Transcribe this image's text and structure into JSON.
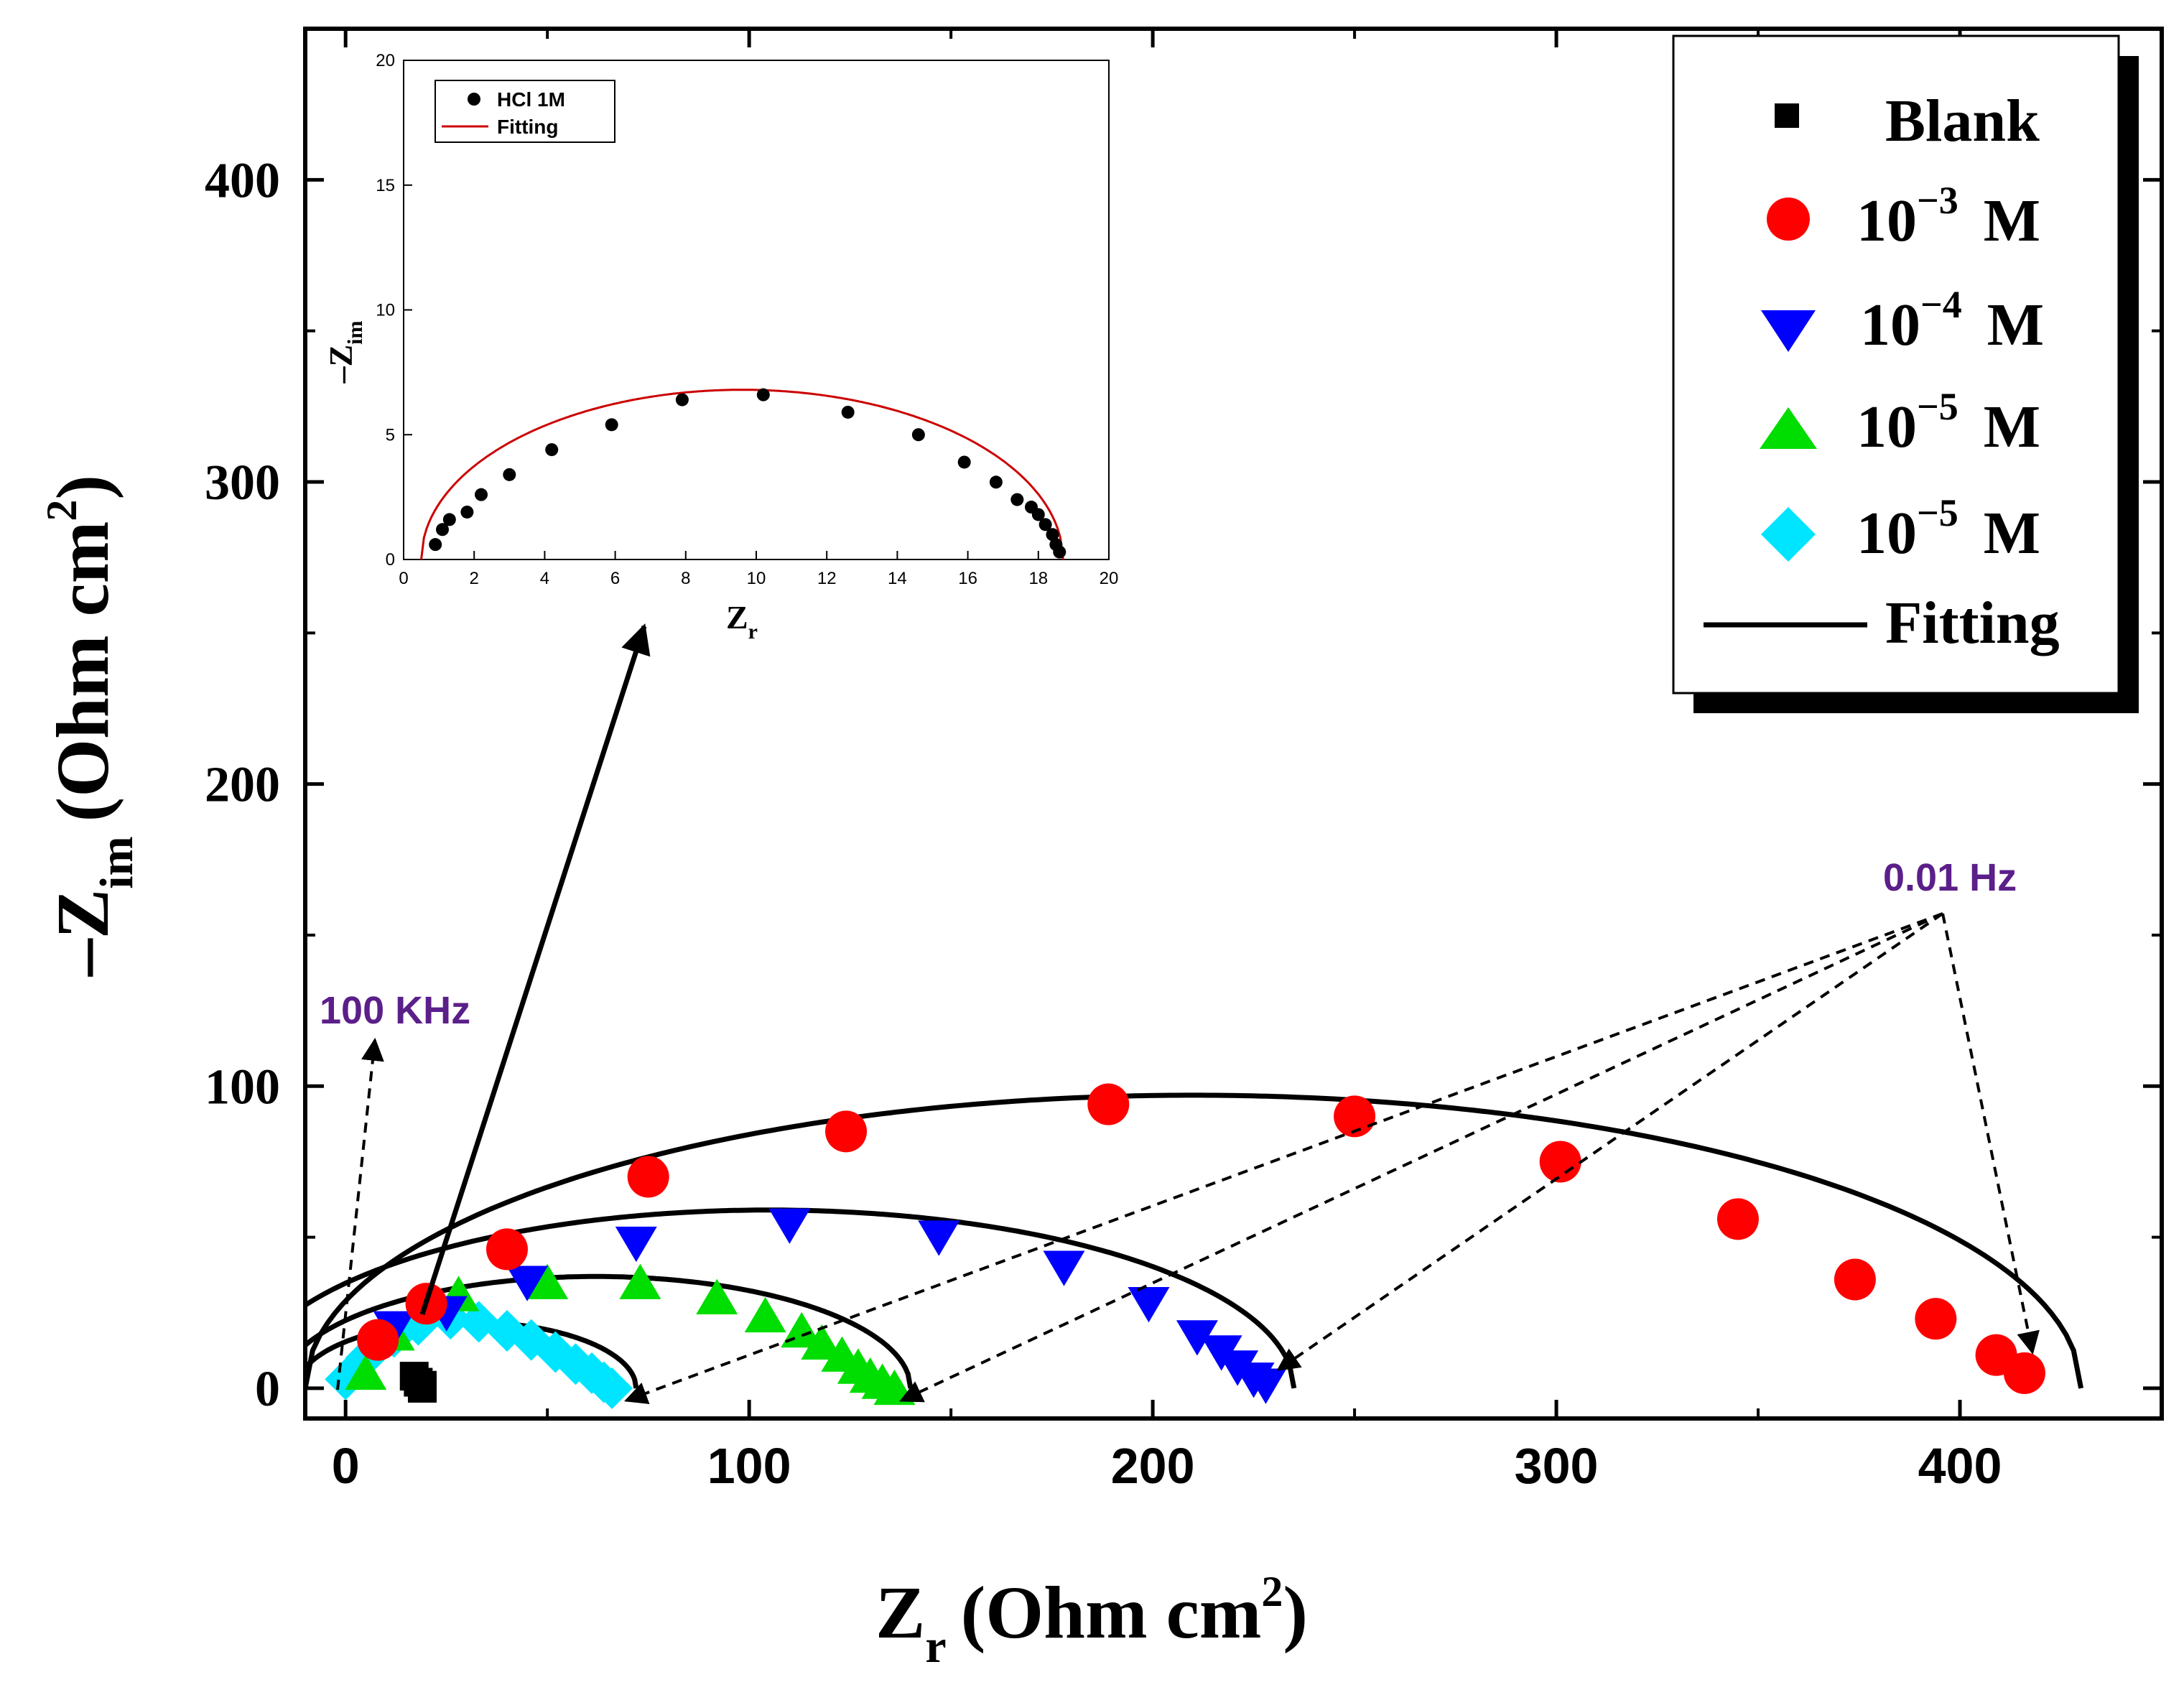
{
  "chart_data": {
    "type": "scatter",
    "xlabel_main": "Z",
    "xlabel_sub": "r",
    "xlabel_unit": "(Ohm cm",
    "xlabel_sup": "2",
    "xlabel_close": ")",
    "ylabel_main": "–Z",
    "ylabel_sub": "im",
    "ylabel_unit": "(Ohm cm",
    "ylabel_sup": "2",
    "ylabel_close": ")",
    "xlim": [
      -10,
      450
    ],
    "ylim": [
      -10,
      450
    ],
    "xticks": [
      0,
      100,
      200,
      300,
      400
    ],
    "yticks": [
      0,
      100,
      200,
      300,
      400
    ],
    "xtick_labels": [
      "0",
      "100",
      "200",
      "300",
      "400"
    ],
    "ytick_labels": [
      "0",
      "100",
      "200",
      "300",
      "400"
    ],
    "annotations": {
      "high_freq": "100 KHz",
      "low_freq": "0.01 Hz"
    },
    "legend": {
      "position": "top-right",
      "entries": [
        {
          "label": "Blank",
          "sup": "",
          "unit": ""
        },
        {
          "label": "10",
          "sup": "−3",
          "unit": "M"
        },
        {
          "label": "10",
          "sup": "−4",
          "unit": "M"
        },
        {
          "label": "10",
          "sup": "−5",
          "unit": "M"
        },
        {
          "label": "10",
          "sup": "−5",
          "unit": "M"
        },
        {
          "label": "Fitting",
          "sup": "",
          "unit": ""
        }
      ]
    },
    "series": [
      {
        "name": "Blank",
        "marker": "square",
        "color": "#000000",
        "points": [
          [
            17,
            4
          ],
          [
            18,
            2
          ],
          [
            19,
            1
          ],
          [
            19,
            0
          ]
        ]
      },
      {
        "name": "1e-3 M",
        "marker": "circle",
        "color": "#ff0000",
        "points": [
          [
            8,
            16
          ],
          [
            20,
            28
          ],
          [
            40,
            46
          ],
          [
            75,
            70
          ],
          [
            124,
            85
          ],
          [
            189,
            94
          ],
          [
            250,
            90
          ],
          [
            301,
            75
          ],
          [
            345,
            56
          ],
          [
            374,
            36
          ],
          [
            394,
            23
          ],
          [
            409,
            11
          ],
          [
            416,
            5
          ]
        ],
        "fit": {
          "center": 210,
          "radius": 220,
          "height": 97
        }
      },
      {
        "name": "1e-4 M",
        "marker": "triangle-down",
        "color": "#0000ff",
        "points": [
          [
            12,
            20
          ],
          [
            25,
            25
          ],
          [
            45,
            35
          ],
          [
            72,
            48
          ],
          [
            110,
            54
          ],
          [
            147,
            50
          ],
          [
            178,
            40
          ],
          [
            199,
            28
          ],
          [
            211,
            17
          ],
          [
            217,
            12
          ],
          [
            221,
            7
          ],
          [
            225,
            3
          ],
          [
            228,
            1
          ]
        ],
        "fit": {
          "center": 105,
          "radius": 130,
          "height": 59
        }
      },
      {
        "name": "1e-5 M",
        "marker": "triangle-up",
        "color": "#00dd00",
        "points": [
          [
            5,
            5
          ],
          [
            12,
            18
          ],
          [
            28,
            31
          ],
          [
            50,
            35
          ],
          [
            73,
            35
          ],
          [
            92,
            30
          ],
          [
            104,
            24
          ],
          [
            113,
            19
          ],
          [
            118,
            15
          ],
          [
            123,
            11
          ],
          [
            127,
            7
          ],
          [
            130,
            4
          ],
          [
            133,
            2
          ],
          [
            136,
            0
          ]
        ],
        "fit": {
          "center": 62,
          "radius": 78,
          "height": 37
        }
      },
      {
        "name": "1e-5 M (2)",
        "marker": "diamond",
        "color": "#00e5ff",
        "points": [
          [
            0,
            3
          ],
          [
            5,
            10
          ],
          [
            12,
            17
          ],
          [
            18,
            21
          ],
          [
            26,
            23
          ],
          [
            33,
            22
          ],
          [
            40,
            19
          ],
          [
            46,
            16
          ],
          [
            52,
            12
          ],
          [
            57,
            8
          ],
          [
            61,
            5
          ],
          [
            64,
            2
          ],
          [
            66,
            0
          ]
        ],
        "fit": {
          "center": 30,
          "radius": 42,
          "height": 22
        }
      }
    ],
    "inset": {
      "xlabel_main": "Z",
      "xlabel_sub": "r",
      "ylabel_main": "–Z",
      "ylabel_sub": "im",
      "xlim": [
        0,
        20
      ],
      "ylim": [
        0,
        20
      ],
      "xticks": [
        0,
        2,
        4,
        6,
        8,
        10,
        12,
        14,
        16,
        18,
        20
      ],
      "yticks": [
        0,
        5,
        10,
        15,
        20
      ],
      "xtick_labels": [
        "0",
        "2",
        "4",
        "6",
        "8",
        "10",
        "12",
        "14",
        "16",
        "18",
        "20"
      ],
      "ytick_labels": [
        "0",
        "5",
        "10",
        "15",
        "20"
      ],
      "legend": {
        "entries": [
          {
            "label": "HCl 1M",
            "marker": "circle"
          },
          {
            "label": "Fitting",
            "marker": "line"
          }
        ]
      },
      "points": [
        [
          0.9,
          0.6
        ],
        [
          1.1,
          1.2
        ],
        [
          1.3,
          1.6
        ],
        [
          1.8,
          1.9
        ],
        [
          2.2,
          2.6
        ],
        [
          3.0,
          3.4
        ],
        [
          4.2,
          4.4
        ],
        [
          5.9,
          5.4
        ],
        [
          7.9,
          6.4
        ],
        [
          10.2,
          6.6
        ],
        [
          12.6,
          5.9
        ],
        [
          14.6,
          5.0
        ],
        [
          15.9,
          3.9
        ],
        [
          16.8,
          3.1
        ],
        [
          17.4,
          2.4
        ],
        [
          17.8,
          2.1
        ],
        [
          18.0,
          1.8
        ],
        [
          18.2,
          1.4
        ],
        [
          18.4,
          1.0
        ],
        [
          18.5,
          0.6
        ],
        [
          18.6,
          0.3
        ]
      ],
      "fit": {
        "center": 9.6,
        "radius": 9.1,
        "height": 6.8
      },
      "fit_color": "#cc0000"
    }
  }
}
